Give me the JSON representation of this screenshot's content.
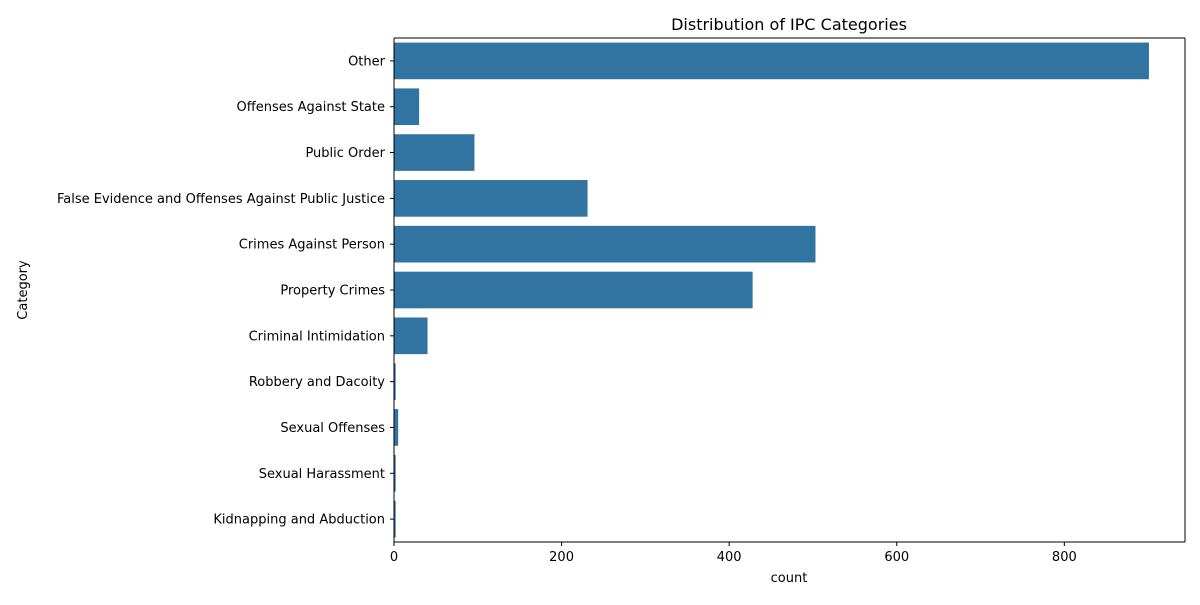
{
  "chart_data": {
    "type": "bar",
    "orientation": "horizontal",
    "title": "Distribution of IPC Categories",
    "xlabel": "count",
    "ylabel": "Category",
    "xlim": [
      0,
      944
    ],
    "xticks": [
      0,
      200,
      400,
      600,
      800
    ],
    "categories": [
      "Other",
      "Offenses Against State",
      "Public Order",
      "False Evidence and Offenses Against Public Justice",
      "Crimes Against Person",
      "Property Crimes",
      "Criminal Intimidation",
      "Robbery and Dacoity",
      "Sexual Offenses",
      "Sexual Harassment",
      "Kidnapping and Abduction"
    ],
    "values": [
      901,
      30,
      96,
      231,
      503,
      428,
      40,
      2,
      5,
      2,
      2
    ],
    "bar_color": "#3274a1",
    "grid": false,
    "legend": "none"
  }
}
